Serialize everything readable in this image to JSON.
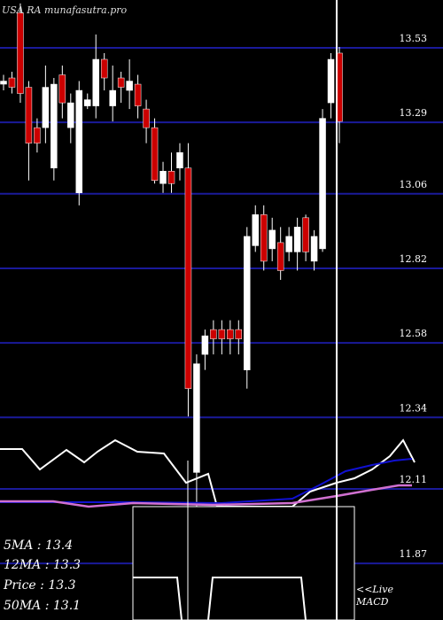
{
  "chart_data": {
    "type": "candlestick",
    "watermark": "USA RA munafasutra.pro",
    "series": {
      "open": [
        13.39,
        13.41,
        13.62,
        13.38,
        13.25,
        13.25,
        13.12,
        13.42,
        13.25,
        13.04,
        13.32,
        13.32,
        13.47,
        13.32,
        13.41,
        13.37,
        13.39,
        13.31,
        13.25,
        13.07,
        13.11,
        13.12,
        13.12,
        12.14,
        12.52,
        12.6,
        12.6,
        12.6,
        12.6,
        12.47,
        12.87,
        12.97,
        12.86,
        12.88,
        12.85,
        12.85,
        12.96,
        12.82,
        12.86,
        13.33,
        13.49
      ],
      "high": [
        13.42,
        13.43,
        13.65,
        13.4,
        13.28,
        13.45,
        13.41,
        13.45,
        13.36,
        13.4,
        13.36,
        13.55,
        13.49,
        13.45,
        13.43,
        13.47,
        13.42,
        13.34,
        13.28,
        13.14,
        13.17,
        13.2,
        13.2,
        12.52,
        12.6,
        12.63,
        12.63,
        12.63,
        12.63,
        12.93,
        13.0,
        13.0,
        12.96,
        12.93,
        12.93,
        12.96,
        12.97,
        12.92,
        13.31,
        13.49,
        13.51
      ],
      "low": [
        13.37,
        13.36,
        13.33,
        13.08,
        13.17,
        13.2,
        13.08,
        13.28,
        13.2,
        13.0,
        13.31,
        13.28,
        13.37,
        13.27,
        13.33,
        13.31,
        13.28,
        13.2,
        13.07,
        13.04,
        13.04,
        13.08,
        12.32,
        12.0,
        12.47,
        12.52,
        12.52,
        12.52,
        12.52,
        12.41,
        12.85,
        12.79,
        12.82,
        12.76,
        12.82,
        12.79,
        12.82,
        12.79,
        12.85,
        13.28,
        13.2
      ],
      "close": [
        13.4,
        13.38,
        13.36,
        13.2,
        13.2,
        13.38,
        13.39,
        13.33,
        13.33,
        13.37,
        13.34,
        13.47,
        13.41,
        13.37,
        13.38,
        13.4,
        13.32,
        13.25,
        13.08,
        13.11,
        13.07,
        13.17,
        12.41,
        12.49,
        12.58,
        12.57,
        12.57,
        12.57,
        12.57,
        12.9,
        12.97,
        12.82,
        12.92,
        12.79,
        12.9,
        12.93,
        12.85,
        12.9,
        13.28,
        13.47,
        13.27
      ],
      "up_color": "#ffffff",
      "down_color": "#cc0000"
    },
    "ylim": [
      11.665,
      13.661
    ],
    "yticks": [
      13.53,
      13.29,
      13.06,
      12.82,
      12.58,
      12.34,
      12.11,
      11.87
    ],
    "grid": true,
    "info": [
      "5MA : 13.4",
      "12MA : 13.3",
      "Price  : 13.3",
      "50MA : 13.1"
    ],
    "live": "<<Live",
    "indicator": "MACD"
  }
}
